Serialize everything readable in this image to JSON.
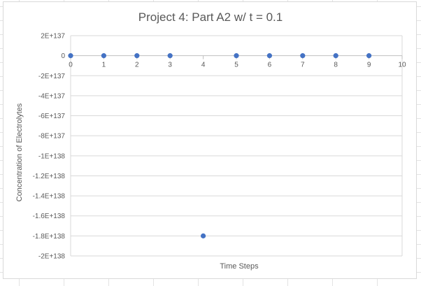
{
  "chart_data": {
    "type": "scatter",
    "title": "Project 4: Part A2 w/ t = 0.1",
    "xlabel": "Time Steps",
    "ylabel": "Concentration of Electrolytes",
    "xlim": [
      0,
      10
    ],
    "ylim": [
      -2e+138,
      2e+137
    ],
    "x_ticks": [
      0,
      1,
      2,
      3,
      4,
      5,
      6,
      7,
      8,
      9,
      10
    ],
    "x_tick_labels": [
      "0",
      "1",
      "2",
      "3",
      "4",
      "5",
      "6",
      "7",
      "8",
      "9",
      "10"
    ],
    "y_ticks": [
      2e+137,
      0,
      -2e+137,
      -4e+137,
      -6e+137,
      -8e+137,
      -1e+138,
      -1.2e+138,
      -1.4e+138,
      -1.6e+138,
      -1.8e+138,
      -2e+138
    ],
    "y_tick_labels": [
      "2E+137",
      "0",
      "-2E+137",
      "-4E+137",
      "-6E+137",
      "-8E+137",
      "-1E+138",
      "-1.2E+138",
      "-1.4E+138",
      "-1.6E+138",
      "-1.8E+138",
      "-2E+138"
    ],
    "grid": true,
    "legend": "none",
    "marker_color": "#4472c4",
    "series": [
      {
        "x": [
          0,
          1,
          2,
          3,
          4,
          5,
          6,
          7,
          8,
          9
        ],
        "y": [
          0,
          0,
          0,
          0,
          -1.8e+138,
          0,
          0,
          0,
          0,
          0
        ]
      }
    ]
  }
}
